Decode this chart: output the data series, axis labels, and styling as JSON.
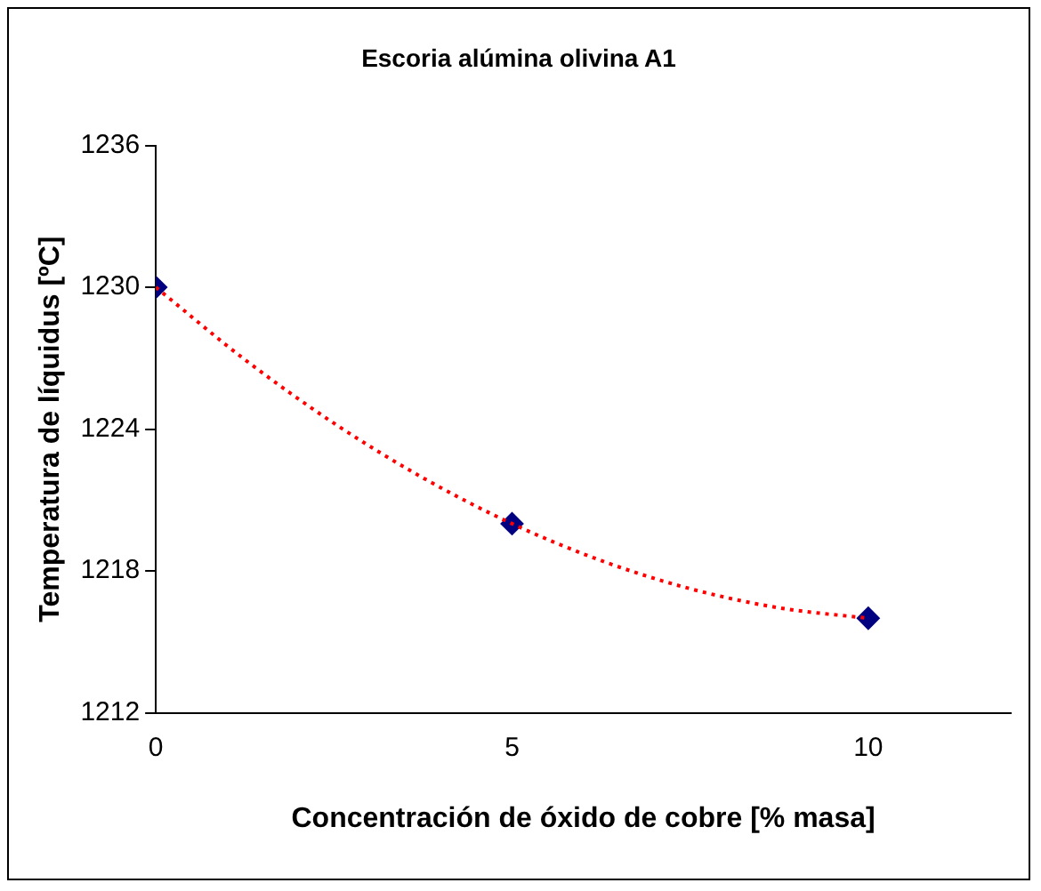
{
  "chart_data": {
    "type": "scatter",
    "title": "Escoria alúmina olivina A1",
    "xlabel": "Concentración de óxido de cobre [% masa]",
    "ylabel": "Temperatura de líquidus [ºC]",
    "xlim": [
      0,
      12
    ],
    "xticks": [
      0,
      5,
      10
    ],
    "ylim": [
      1212,
      1236
    ],
    "yticks": [
      1212,
      1218,
      1224,
      1230,
      1236
    ],
    "grid": false,
    "legend": false,
    "marker": "diamond",
    "series": [
      {
        "type": "line",
        "color": "#ff0000",
        "line_style": "dotted",
        "marker": "none",
        "x": [
          0,
          1.25,
          2.5,
          3.75,
          5,
          6.25,
          7.5,
          8.75,
          10
        ],
        "values": [
          1230,
          1226.94,
          1224.25,
          1221.94,
          1220,
          1218.44,
          1217.25,
          1216.44,
          1216
        ]
      },
      {
        "color": "#000080",
        "x": [
          0,
          5,
          10
        ],
        "values": [
          1230,
          1220,
          1216
        ]
      }
    ]
  }
}
